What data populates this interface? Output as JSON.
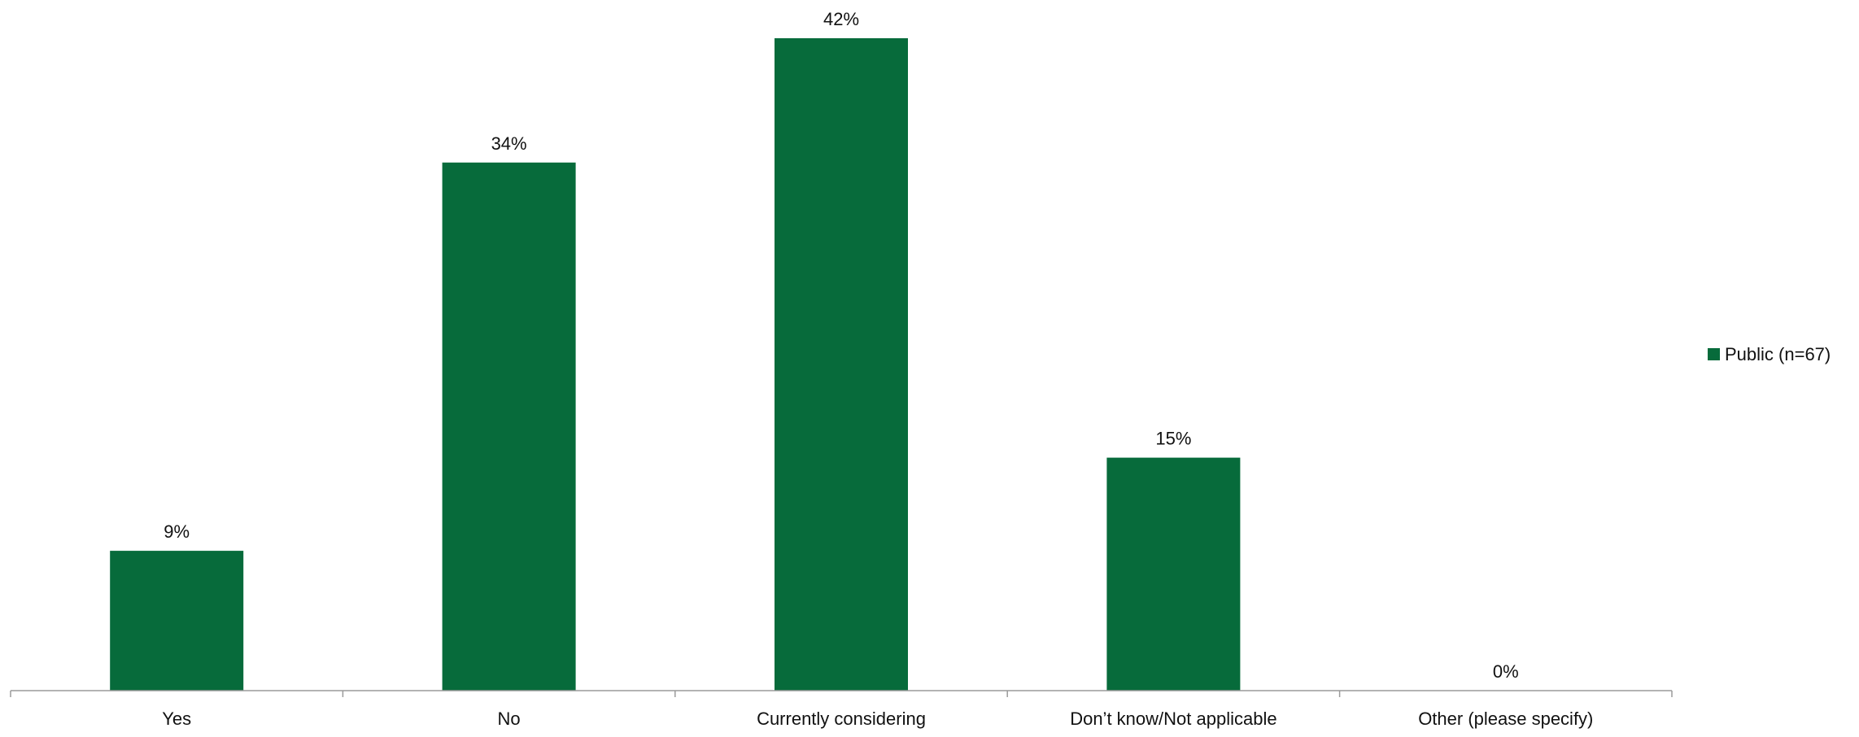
{
  "chart_data": {
    "type": "bar",
    "categories": [
      "Yes",
      "No",
      "Currently considering",
      "Don’t know/Not applicable",
      "Other (please specify)"
    ],
    "series": [
      {
        "name": "Public (n=67)",
        "values": [
          9,
          34,
          42,
          15,
          0
        ],
        "labels": [
          "9%",
          "34%",
          "42%",
          "15%",
          "0%"
        ],
        "color": "#076b3b"
      }
    ],
    "ylim": [
      0,
      42
    ],
    "grid": false,
    "legend": "right"
  }
}
